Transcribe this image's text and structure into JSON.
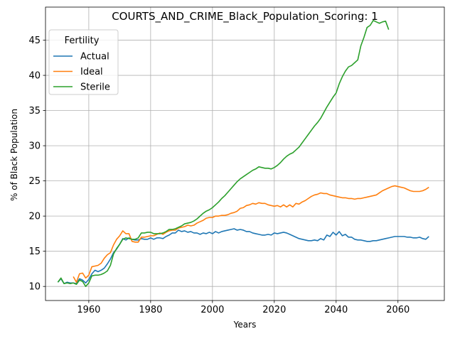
{
  "chart_data": {
    "type": "line",
    "title": "COURTS_AND_CRIME_Black_Population_Scoring: 1",
    "xlabel": "Years",
    "ylabel": "% of Black Population",
    "xlim": [
      1946,
      2075
    ],
    "ylim": [
      8.0,
      49.7
    ],
    "xticks": [
      1960,
      1980,
      2000,
      2020,
      2040,
      2060
    ],
    "yticks": [
      10,
      15,
      20,
      25,
      30,
      35,
      40,
      45
    ],
    "grid": true,
    "legend": {
      "title": "Fertility",
      "placement": "upper-left"
    },
    "series": [
      {
        "name": "Actual",
        "color": "#1f77b4",
        "x": [
          1950,
          1951,
          1952,
          1953,
          1954,
          1955,
          1956,
          1957,
          1958,
          1959,
          1960,
          1961,
          1962,
          1963,
          1964,
          1965,
          1966,
          1967,
          1968,
          1969,
          1970,
          1971,
          1972,
          1973,
          1974,
          1975,
          1976,
          1977,
          1978,
          1979,
          1980,
          1981,
          1982,
          1983,
          1984,
          1985,
          1986,
          1987,
          1988,
          1989,
          1990,
          1991,
          1992,
          1993,
          1994,
          1995,
          1996,
          1997,
          1998,
          1999,
          2000,
          2001,
          2002,
          2003,
          2004,
          2005,
          2006,
          2007,
          2008,
          2009,
          2010,
          2011,
          2012,
          2013,
          2014,
          2015,
          2016,
          2017,
          2018,
          2019,
          2020,
          2021,
          2022,
          2023,
          2024,
          2025,
          2026,
          2027,
          2028,
          2029,
          2030,
          2031,
          2032,
          2033,
          2034,
          2035,
          2036,
          2037,
          2038,
          2039,
          2040,
          2041,
          2042,
          2043,
          2044,
          2045,
          2046,
          2047,
          2048,
          2049,
          2050,
          2051,
          2052,
          2053,
          2054,
          2055,
          2056,
          2057,
          2058,
          2059,
          2060,
          2061,
          2062,
          2063,
          2064,
          2065,
          2066,
          2067,
          2068,
          2069,
          2070
        ],
        "values": [
          10.6,
          11.1,
          10.4,
          10.6,
          10.5,
          10.5,
          10.4,
          11.1,
          10.9,
          10.5,
          11.0,
          11.8,
          12.3,
          12.1,
          12.3,
          12.6,
          13.2,
          13.9,
          14.8,
          15.3,
          16.0,
          16.8,
          16.6,
          16.9,
          16.7,
          16.6,
          16.6,
          16.8,
          16.7,
          16.7,
          16.9,
          16.7,
          16.9,
          16.9,
          16.8,
          17.1,
          17.3,
          17.6,
          17.6,
          18.0,
          17.8,
          17.9,
          17.7,
          17.8,
          17.6,
          17.6,
          17.4,
          17.6,
          17.5,
          17.7,
          17.5,
          17.8,
          17.6,
          17.8,
          17.9,
          18.0,
          18.1,
          18.2,
          18.0,
          18.1,
          18.0,
          17.8,
          17.8,
          17.6,
          17.5,
          17.4,
          17.3,
          17.3,
          17.4,
          17.3,
          17.6,
          17.5,
          17.6,
          17.7,
          17.6,
          17.4,
          17.2,
          17.0,
          16.8,
          16.7,
          16.6,
          16.5,
          16.5,
          16.6,
          16.5,
          16.8,
          16.6,
          17.3,
          17.1,
          17.7,
          17.3,
          17.8,
          17.2,
          17.4,
          17.0,
          17.0,
          16.7,
          16.6,
          16.6,
          16.5,
          16.4,
          16.4,
          16.5,
          16.5,
          16.6,
          16.7,
          16.8,
          16.9,
          17.0,
          17.1,
          17.1,
          17.1,
          17.1,
          17.0,
          17.0,
          16.9,
          16.9,
          17.0,
          16.8,
          16.7,
          17.1
        ]
      },
      {
        "name": "Ideal",
        "color": "#ff7f0e",
        "x": [
          1955,
          1956,
          1957,
          1958,
          1959,
          1960,
          1961,
          1962,
          1963,
          1964,
          1965,
          1966,
          1967,
          1968,
          1969,
          1970,
          1971,
          1972,
          1973,
          1974,
          1975,
          1976,
          1977,
          1978,
          1979,
          1980,
          1981,
          1982,
          1983,
          1984,
          1985,
          1986,
          1987,
          1988,
          1989,
          1990,
          1991,
          1992,
          1993,
          1994,
          1995,
          1996,
          1997,
          1998,
          1999,
          2000,
          2001,
          2002,
          2003,
          2004,
          2005,
          2006,
          2007,
          2008,
          2009,
          2010,
          2011,
          2012,
          2013,
          2014,
          2015,
          2016,
          2017,
          2018,
          2019,
          2020,
          2021,
          2022,
          2023,
          2024,
          2025,
          2026,
          2027,
          2028,
          2029,
          2030,
          2031,
          2032,
          2033,
          2034,
          2035,
          2036,
          2037,
          2038,
          2039,
          2040,
          2041,
          2042,
          2043,
          2044,
          2045,
          2046,
          2047,
          2048,
          2049,
          2050,
          2051,
          2052,
          2053,
          2054,
          2055,
          2056,
          2057,
          2058,
          2059,
          2060,
          2061,
          2062,
          2063,
          2064,
          2065,
          2066,
          2067,
          2068,
          2069,
          2070
        ],
        "values": [
          11.4,
          10.6,
          11.8,
          11.9,
          11.2,
          11.6,
          12.8,
          12.9,
          13.0,
          13.3,
          14.0,
          14.5,
          14.8,
          15.9,
          16.7,
          17.2,
          17.9,
          17.5,
          17.5,
          16.4,
          16.3,
          16.3,
          17.0,
          17.0,
          17.1,
          17.2,
          17.2,
          17.4,
          17.6,
          17.4,
          17.7,
          17.9,
          18.0,
          18.0,
          18.3,
          18.4,
          18.5,
          18.7,
          18.6,
          18.7,
          19.0,
          19.2,
          19.4,
          19.7,
          19.8,
          19.8,
          20.0,
          20.0,
          20.1,
          20.1,
          20.2,
          20.4,
          20.5,
          20.7,
          21.1,
          21.2,
          21.5,
          21.6,
          21.8,
          21.7,
          21.9,
          21.8,
          21.8,
          21.6,
          21.5,
          21.4,
          21.5,
          21.3,
          21.6,
          21.3,
          21.6,
          21.3,
          21.8,
          21.7,
          22.0,
          22.2,
          22.5,
          22.8,
          23.0,
          23.1,
          23.3,
          23.2,
          23.2,
          23.0,
          22.9,
          22.8,
          22.7,
          22.6,
          22.6,
          22.5,
          22.5,
          22.4,
          22.5,
          22.5,
          22.6,
          22.7,
          22.8,
          22.9,
          23.0,
          23.3,
          23.6,
          23.8,
          24.0,
          24.2,
          24.3,
          24.2,
          24.1,
          24.0,
          23.8,
          23.6,
          23.5,
          23.5,
          23.5,
          23.6,
          23.8,
          24.1
        ]
      },
      {
        "name": "Sterile",
        "color": "#2ca02c",
        "x": [
          1950,
          1951,
          1952,
          1953,
          1954,
          1955,
          1956,
          1957,
          1958,
          1959,
          1960,
          1961,
          1962,
          1963,
          1964,
          1965,
          1966,
          1967,
          1968,
          1969,
          1970,
          1971,
          1972,
          1973,
          1974,
          1975,
          1976,
          1977,
          1978,
          1979,
          1980,
          1981,
          1982,
          1983,
          1984,
          1985,
          1986,
          1987,
          1988,
          1989,
          1990,
          1991,
          1992,
          1993,
          1994,
          1995,
          1996,
          1997,
          1998,
          1999,
          2000,
          2001,
          2002,
          2003,
          2004,
          2005,
          2006,
          2007,
          2008,
          2009,
          2010,
          2011,
          2012,
          2013,
          2014,
          2015,
          2016,
          2017,
          2018,
          2019,
          2020,
          2021,
          2022,
          2023,
          2024,
          2025,
          2026,
          2027,
          2028,
          2029,
          2030,
          2031,
          2032,
          2033,
          2034,
          2035,
          2036,
          2037,
          2038,
          2039,
          2040,
          2041,
          2042,
          2043,
          2044,
          2045,
          2046,
          2047,
          2048,
          2049,
          2050,
          2051,
          2052,
          2053,
          2054,
          2055,
          2056,
          2057
        ],
        "values": [
          10.6,
          11.2,
          10.4,
          10.5,
          10.4,
          10.5,
          10.3,
          10.9,
          10.7,
          10.0,
          10.5,
          11.5,
          11.6,
          11.6,
          11.7,
          11.9,
          12.2,
          13.0,
          14.6,
          15.4,
          16.0,
          16.7,
          16.9,
          16.8,
          16.7,
          16.7,
          16.9,
          17.6,
          17.6,
          17.7,
          17.7,
          17.5,
          17.5,
          17.5,
          17.6,
          17.8,
          18.1,
          18.1,
          18.2,
          18.4,
          18.6,
          18.9,
          19.0,
          19.1,
          19.3,
          19.6,
          20.0,
          20.4,
          20.7,
          20.9,
          21.2,
          21.6,
          22.0,
          22.5,
          22.9,
          23.4,
          23.9,
          24.4,
          24.9,
          25.3,
          25.6,
          25.9,
          26.2,
          26.5,
          26.7,
          27.0,
          26.9,
          26.8,
          26.8,
          26.7,
          26.9,
          27.2,
          27.6,
          28.1,
          28.5,
          28.8,
          29.0,
          29.4,
          29.8,
          30.4,
          31.0,
          31.6,
          32.2,
          32.8,
          33.3,
          33.9,
          34.7,
          35.5,
          36.2,
          36.9,
          37.5,
          38.8,
          39.8,
          40.6,
          41.2,
          41.4,
          41.8,
          42.2,
          44.2,
          45.4,
          46.8,
          47.1,
          47.8,
          47.6,
          47.4,
          47.6,
          47.7,
          46.5
        ]
      }
    ]
  }
}
